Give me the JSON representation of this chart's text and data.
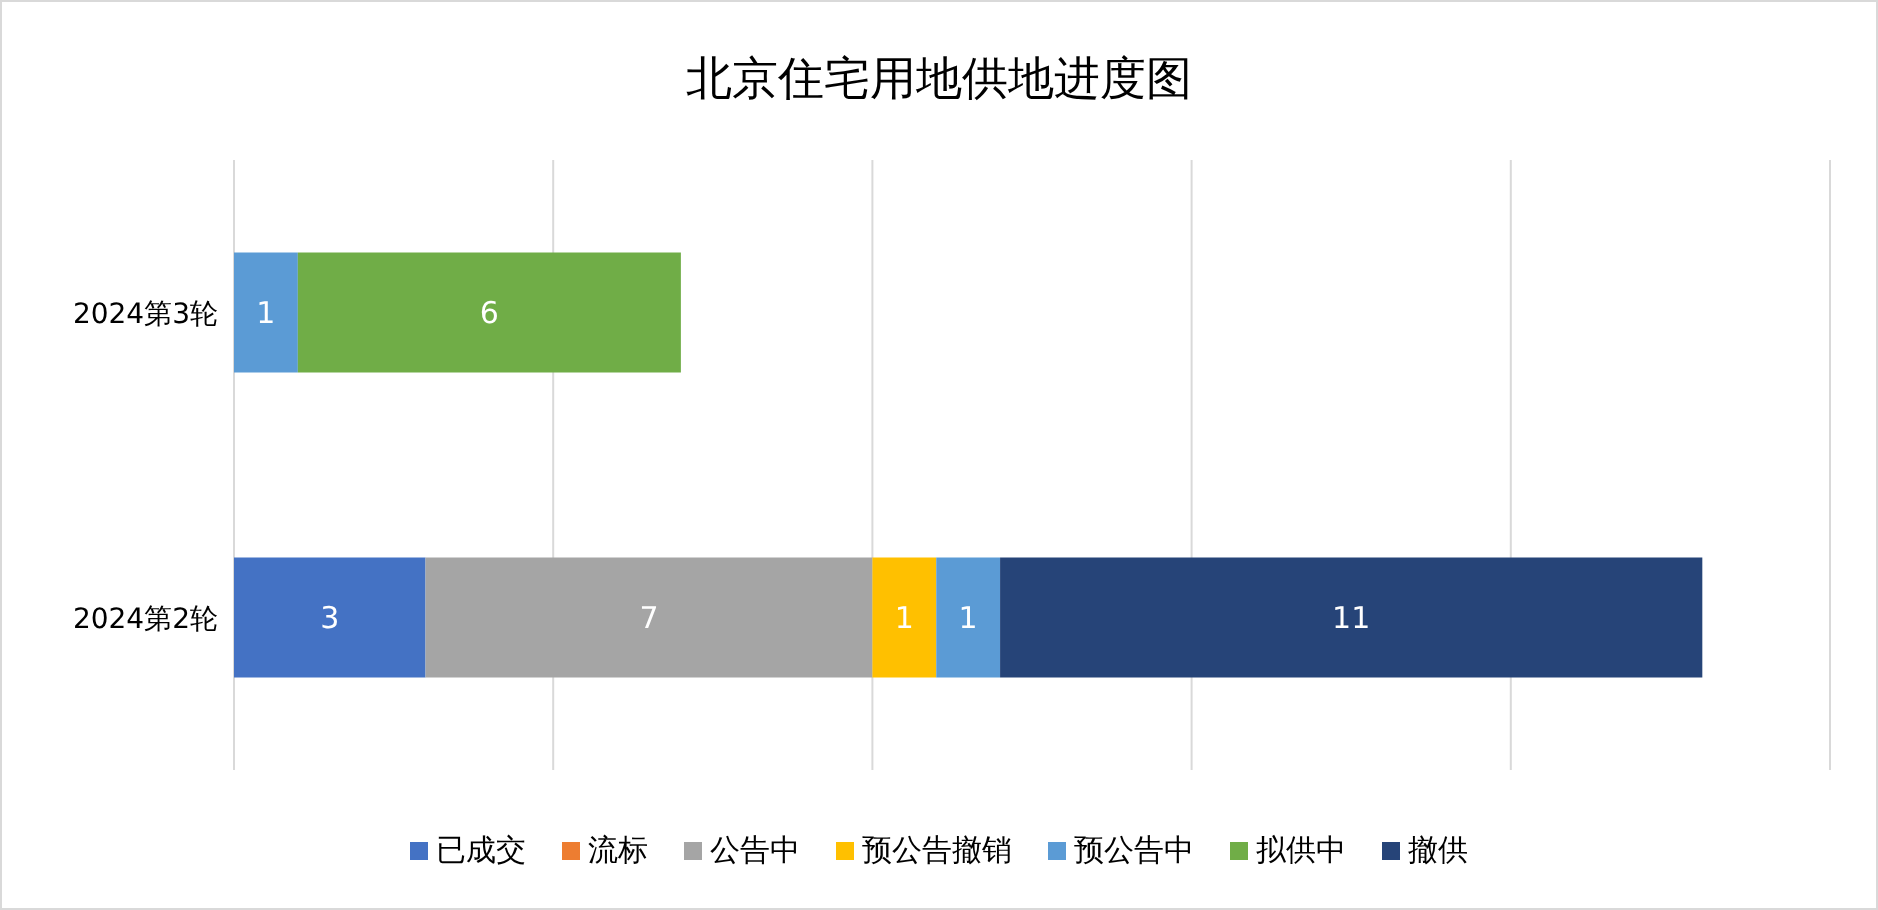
{
  "chart_data": {
    "type": "bar",
    "orientation": "horizontal",
    "stacked": true,
    "title": "北京住宅用地供地进度图",
    "categories": [
      "2024第3轮",
      "2024第2轮"
    ],
    "series": [
      {
        "name": "已成交",
        "color": "#4472c4",
        "values": [
          null,
          3
        ]
      },
      {
        "name": "流标",
        "color": "#ed7d31",
        "values": [
          null,
          null
        ]
      },
      {
        "name": "公告中",
        "color": "#a5a5a5",
        "values": [
          null,
          7
        ]
      },
      {
        "name": "预公告撤销",
        "color": "#ffc000",
        "values": [
          null,
          1
        ]
      },
      {
        "name": "预公告中",
        "color": "#5b9bd5",
        "values": [
          1,
          1
        ]
      },
      {
        "name": "拟供中",
        "color": "#70ad47",
        "values": [
          6,
          null
        ]
      },
      {
        "name": "撤供",
        "color": "#264478",
        "values": [
          null,
          11
        ]
      }
    ],
    "xlim": [
      0,
      25
    ],
    "xticks": [
      {
        "value": 0,
        "label": null
      },
      {
        "value": 5,
        "label": null
      },
      {
        "value": 10,
        "label": null
      },
      {
        "value": 15,
        "label": null
      },
      {
        "value": 20,
        "label": null
      },
      {
        "value": 25,
        "label": null
      }
    ],
    "tick_labels": "y",
    "grid": "x",
    "legend": "bottom",
    "data_labels": true
  }
}
